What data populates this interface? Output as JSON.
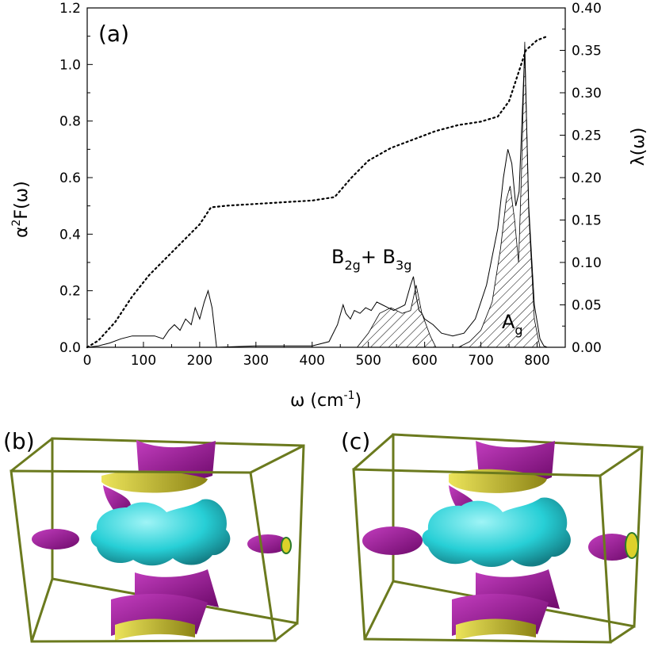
{
  "chart_data": {
    "type": "line",
    "panel_label": "(a)",
    "xlabel": "ω (cm",
    "xlabel_sup": "-1",
    "xlabel_tail": ")",
    "ylabel": "α",
    "ylabel_sup": "2",
    "ylabel_tail": "F(ω)",
    "y2label": "λ(ω)",
    "xlim": [
      0,
      850
    ],
    "ylim": [
      0,
      1.2
    ],
    "y2lim": [
      0,
      0.4
    ],
    "xticks": [
      "0",
      "100",
      "200",
      "300",
      "400",
      "500",
      "600",
      "700",
      "800"
    ],
    "yticks": [
      "0.0",
      "0.2",
      "0.4",
      "0.6",
      "0.8",
      "1.0",
      "1.2"
    ],
    "y2ticks": [
      "0.00",
      "0.05",
      "0.10",
      "0.15",
      "0.20",
      "0.25",
      "0.30",
      "0.35",
      "0.40"
    ],
    "grid": false,
    "series": [
      {
        "style": "solid",
        "axis": "left",
        "x": [
          0,
          20,
          40,
          60,
          80,
          100,
          120,
          135,
          145,
          155,
          165,
          175,
          185,
          192,
          200,
          208,
          215,
          222,
          230,
          300,
          400,
          430,
          445,
          455,
          460,
          468,
          475,
          485,
          495,
          505,
          515,
          525,
          535,
          545,
          555,
          565,
          575,
          580,
          585,
          590,
          595,
          600,
          615,
          630,
          650,
          670,
          690,
          710,
          730,
          740,
          748,
          755,
          762,
          768,
          772,
          778,
          785,
          795,
          805,
          812,
          818
        ],
        "y": [
          0,
          0.005,
          0.015,
          0.03,
          0.04,
          0.04,
          0.04,
          0.03,
          0.06,
          0.08,
          0.06,
          0.1,
          0.08,
          0.14,
          0.1,
          0.16,
          0.2,
          0.14,
          0,
          0.005,
          0.005,
          0.02,
          0.08,
          0.15,
          0.12,
          0.1,
          0.13,
          0.12,
          0.14,
          0.13,
          0.16,
          0.15,
          0.14,
          0.13,
          0.14,
          0.15,
          0.22,
          0.25,
          0.18,
          0.13,
          0.12,
          0.1,
          0.08,
          0.05,
          0.04,
          0.05,
          0.1,
          0.22,
          0.42,
          0.6,
          0.7,
          0.65,
          0.5,
          0.55,
          0.75,
          1.05,
          0.5,
          0.15,
          0.03,
          0.005,
          0
        ]
      },
      {
        "style": "dotted",
        "axis": "right",
        "x": [
          0,
          20,
          50,
          80,
          110,
          140,
          170,
          200,
          220,
          250,
          300,
          350,
          400,
          440,
          470,
          500,
          540,
          580,
          620,
          660,
          700,
          730,
          750,
          765,
          780,
          800,
          820
        ],
        "y": [
          0,
          0.008,
          0.03,
          0.06,
          0.085,
          0.105,
          0.125,
          0.145,
          0.165,
          0.167,
          0.169,
          0.171,
          0.173,
          0.177,
          0.2,
          0.22,
          0.235,
          0.245,
          0.255,
          0.262,
          0.266,
          0.272,
          0.29,
          0.32,
          0.35,
          0.362,
          0.367
        ]
      }
    ],
    "hatched_regions": [
      {
        "x": [
          480,
          500,
          520,
          540,
          560,
          575,
          585,
          595,
          610,
          620
        ],
        "y": [
          0,
          0.05,
          0.12,
          0.14,
          0.12,
          0.13,
          0.22,
          0.12,
          0.04,
          0
        ]
      },
      {
        "x": [
          660,
          680,
          700,
          720,
          735,
          745,
          752,
          760,
          767,
          772,
          778,
          785,
          795,
          805
        ],
        "y": [
          0,
          0.02,
          0.06,
          0.16,
          0.35,
          0.52,
          0.57,
          0.45,
          0.3,
          0.6,
          1.08,
          0.48,
          0.1,
          0
        ]
      }
    ],
    "annotations": [
      {
        "text": "B",
        "sub": "2g",
        "mid": "+ B",
        "sub2": "3g"
      },
      {
        "text": "A",
        "sub": "g"
      }
    ]
  },
  "panels": {
    "b_label": "(b)",
    "c_label": "(c)",
    "box_color": "#6b7a1e",
    "surface_colors": {
      "cyan": "#27cfd6",
      "magenta": "#a3119f",
      "yellow": "#dcd12a"
    }
  }
}
